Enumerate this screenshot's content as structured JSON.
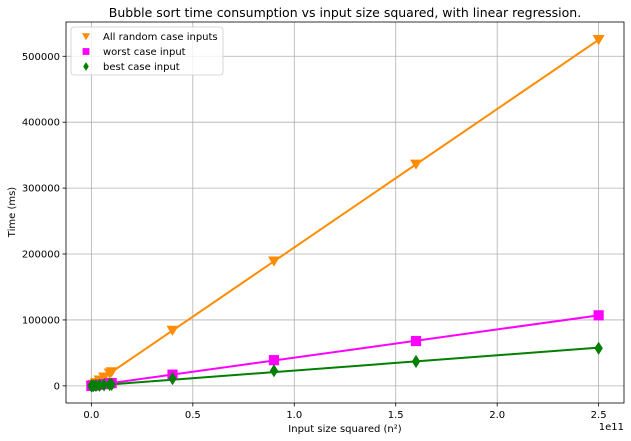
{
  "chart_data": {
    "type": "scatter",
    "title": "Bubble sort time consumption vs input size squared, with linear regression.",
    "xlabel": "Input size squared (n²)",
    "ylabel": "Time (ms)",
    "x_offset_label": "1e11",
    "xlim": [
      -12500000000,
      262500000000
    ],
    "ylim": [
      -26000,
      552000
    ],
    "grid": true,
    "legend_position": "top-left",
    "x_ticks": [
      {
        "value": 0,
        "label": "0.0"
      },
      {
        "value": 50000000000,
        "label": "0.5"
      },
      {
        "value": 100000000000,
        "label": "1.0"
      },
      {
        "value": 150000000000,
        "label": "1.5"
      },
      {
        "value": 200000000000,
        "label": "2.0"
      },
      {
        "value": 250000000000,
        "label": "2.5"
      }
    ],
    "y_ticks": [
      {
        "value": 0,
        "label": "0"
      },
      {
        "value": 100000,
        "label": "100000"
      },
      {
        "value": 200000,
        "label": "200000"
      },
      {
        "value": 300000,
        "label": "300000"
      },
      {
        "value": 400000,
        "label": "400000"
      },
      {
        "value": 500000,
        "label": "500000"
      }
    ],
    "x": [
      10000000,
      250000000,
      1000000000,
      2250000000,
      4000000000,
      6250000000,
      9000000000,
      10000000000,
      40000000000,
      90000000000,
      160000000000,
      250000000000
    ],
    "series": [
      {
        "name": "All random case inputs",
        "color": "#ff8c00",
        "marker": "triangle-down",
        "values": [
          0,
          500,
          2000,
          4500,
          8500,
          13000,
          19000,
          21000,
          84000,
          189000,
          336000,
          525000
        ],
        "fit_slope": 2.1e-06,
        "fit_intercept": 0
      },
      {
        "name": "worst case input",
        "color": "#ff00ff",
        "marker": "square",
        "values": [
          0,
          100,
          430,
          970,
          1720,
          2700,
          3900,
          4300,
          17000,
          39000,
          68000,
          107000
        ],
        "fit_slope": 4.28e-07,
        "fit_intercept": 0
      },
      {
        "name": "best case input",
        "color": "#008000",
        "marker": "diamond",
        "values": [
          0,
          60,
          240,
          520,
          920,
          1450,
          2100,
          2300,
          11000,
          23000,
          37000,
          57000
        ],
        "fit_slope": 2.32e-07,
        "fit_intercept": 0
      }
    ]
  }
}
